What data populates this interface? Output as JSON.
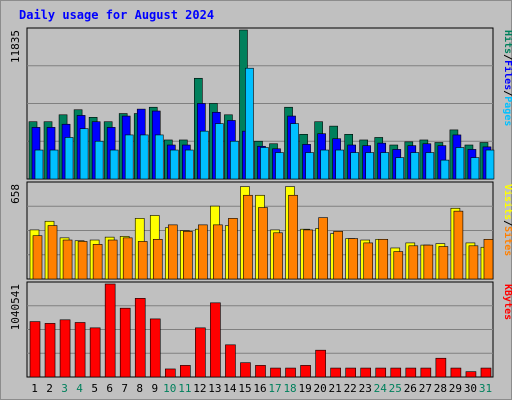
{
  "chart_data": {
    "type": "bar",
    "title": "Daily usage for August 2024",
    "categories": [
      "1",
      "2",
      "3",
      "4",
      "5",
      "6",
      "7",
      "8",
      "9",
      "10",
      "11",
      "12",
      "13",
      "14",
      "15",
      "16",
      "17",
      "18",
      "19",
      "20",
      "21",
      "22",
      "23",
      "24",
      "25",
      "26",
      "27",
      "28",
      "29",
      "30",
      "31"
    ],
    "weekend_days": [
      "3",
      "4",
      "10",
      "11",
      "17",
      "18",
      "24",
      "25",
      "31"
    ],
    "colors": {
      "title": "#0000ff",
      "hits": "#00805c",
      "files": "#0000ff",
      "pages": "#00c0ff",
      "visits": "#ffff00",
      "sites": "#ff8000",
      "kbytes": "#ff0000",
      "weekday_label": "#000000",
      "weekend_label": "#00805c",
      "panel_bg": "#c0c0c0",
      "grid": "#808080"
    },
    "panels": [
      {
        "id": "hits-files-pages",
        "ymax_label": "11835",
        "ymax": 11835,
        "right_label": [
          {
            "text": "Pages",
            "color": "#00c0ff"
          },
          {
            "text": "/",
            "color": "#000000"
          },
          {
            "text": "Files",
            "color": "#0000ff"
          },
          {
            "text": "/",
            "color": "#000000"
          },
          {
            "text": "Hits",
            "color": "#00805c"
          }
        ],
        "series": [
          {
            "name": "Hits",
            "color": "#00805c",
            "values": [
              4550,
              4550,
              5100,
              5500,
              4900,
              4550,
              5200,
              5200,
              5700,
              3100,
              3100,
              8000,
              6000,
              5100,
              11835,
              3000,
              2800,
              5700,
              3550,
              4550,
              4200,
              3550,
              3100,
              3300,
              2700,
              2950,
              3100,
              2900,
              3900,
              2700,
              2900
            ]
          },
          {
            "name": "Files",
            "color": "#0000ff",
            "values": [
              4100,
              4100,
              4350,
              5050,
              4550,
              4100,
              5000,
              5550,
              5400,
              2700,
              2700,
              6000,
              5300,
              4650,
              3800,
              2600,
              2400,
              5000,
              2750,
              3600,
              3200,
              2700,
              2650,
              2850,
              2350,
              2650,
              2800,
              2650,
              3500,
              2350,
              2550
            ]
          },
          {
            "name": "Pages",
            "color": "#00c0ff",
            "values": [
              2300,
              2300,
              3300,
              4000,
              3000,
              2300,
              3500,
              3500,
              3500,
              2300,
              2300,
              3800,
              4400,
              3000,
              8800,
              2500,
              2100,
              4400,
              2100,
              2300,
              2300,
              2100,
              2100,
              2100,
              1700,
              2100,
              2100,
              1500,
              2500,
              1700,
              2300
            ]
          }
        ]
      },
      {
        "id": "visits-sites",
        "ymax_label": "658",
        "ymax": 658,
        "right_label": [
          {
            "text": "Sites",
            "color": "#ff8000"
          },
          {
            "text": "/",
            "color": "#000000"
          },
          {
            "text": "Visits",
            "color": "#ffff00"
          }
        ],
        "series": [
          {
            "name": "Visits",
            "color": "#ffff00",
            "values": [
              340,
              400,
              285,
              265,
              270,
              290,
              295,
              420,
              440,
              355,
              335,
              345,
              505,
              370,
              640,
              580,
              340,
              640,
              345,
              350,
              315,
              280,
              270,
              275,
              215,
              250,
              235,
              245,
              490,
              250,
              220
            ]
          },
          {
            "name": "Sites",
            "color": "#ff8000",
            "values": [
              300,
              370,
              270,
              260,
              240,
              270,
              285,
              260,
              275,
              375,
              330,
              375,
              375,
              420,
              580,
              495,
              320,
              580,
              340,
              425,
              330,
              280,
              250,
              275,
              190,
              230,
              235,
              225,
              470,
              230,
              275
            ]
          }
        ]
      },
      {
        "id": "kbytes",
        "ymax_label": "1040541",
        "ymax": 1040541,
        "right_label": [
          {
            "text": "KBytes",
            "color": "#ff0000"
          }
        ],
        "series": [
          {
            "name": "KBytes",
            "color": "#ff0000",
            "values": [
              620000,
              600000,
              640000,
              610000,
              550000,
              1040541,
              770000,
              880000,
              650000,
              90000,
              130000,
              550000,
              830000,
              360000,
              160000,
              130000,
              100000,
              100000,
              130000,
              300000,
              100000,
              100000,
              100000,
              100000,
              100000,
              100000,
              100000,
              210000,
              100000,
              60000,
              100000
            ]
          }
        ]
      }
    ]
  }
}
